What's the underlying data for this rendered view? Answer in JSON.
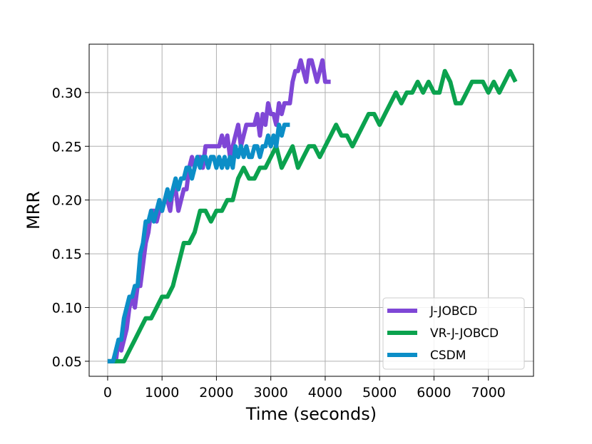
{
  "chart_data": {
    "type": "line",
    "xlabel": "Time (seconds)",
    "ylabel": "MRR",
    "xlim": [
      -340,
      7830
    ],
    "ylim": [
      0.036,
      0.345
    ],
    "xticks": [
      0,
      1000,
      2000,
      3000,
      4000,
      5000,
      6000,
      7000
    ],
    "xtick_labels": [
      "0",
      "1000",
      "2000",
      "3000",
      "4000",
      "5000",
      "6000",
      "7000"
    ],
    "yticks": [
      0.05,
      0.1,
      0.15,
      0.2,
      0.25,
      0.3
    ],
    "ytick_labels": [
      "0.05",
      "0.10",
      "0.15",
      "0.20",
      "0.25",
      "0.30"
    ],
    "grid": true,
    "legend_position": "lower-right",
    "series": [
      {
        "name": "J-JOBCD",
        "color": "#7f47d6",
        "x": [
          0,
          150,
          200,
          250,
          350,
          400,
          450,
          500,
          550,
          600,
          650,
          700,
          750,
          800,
          850,
          900,
          950,
          1000,
          1050,
          1100,
          1150,
          1200,
          1250,
          1300,
          1350,
          1400,
          1450,
          1500,
          1550,
          1600,
          1650,
          1700,
          1750,
          1800,
          1850,
          1900,
          1950,
          2000,
          2050,
          2100,
          2150,
          2200,
          2250,
          2300,
          2350,
          2400,
          2450,
          2500,
          2550,
          2600,
          2650,
          2700,
          2750,
          2800,
          2850,
          2900,
          2950,
          3000,
          3050,
          3100,
          3150,
          3200,
          3250,
          3300,
          3350,
          3400,
          3450,
          3500,
          3550,
          3600,
          3650,
          3700,
          3750,
          3800,
          3850,
          3900,
          3950,
          4000,
          4050,
          4100
        ],
        "y": [
          0.05,
          0.05,
          0.07,
          0.06,
          0.08,
          0.1,
          0.11,
          0.1,
          0.12,
          0.12,
          0.14,
          0.16,
          0.17,
          0.19,
          0.19,
          0.18,
          0.19,
          0.19,
          0.2,
          0.2,
          0.19,
          0.21,
          0.21,
          0.19,
          0.2,
          0.21,
          0.21,
          0.23,
          0.24,
          0.23,
          0.24,
          0.24,
          0.23,
          0.25,
          0.25,
          0.25,
          0.25,
          0.25,
          0.25,
          0.26,
          0.25,
          0.26,
          0.24,
          0.25,
          0.26,
          0.27,
          0.25,
          0.26,
          0.27,
          0.27,
          0.27,
          0.27,
          0.28,
          0.26,
          0.28,
          0.27,
          0.29,
          0.28,
          0.28,
          0.27,
          0.29,
          0.28,
          0.29,
          0.29,
          0.29,
          0.31,
          0.32,
          0.32,
          0.33,
          0.32,
          0.31,
          0.33,
          0.33,
          0.32,
          0.31,
          0.32,
          0.33,
          0.31,
          0.31,
          0.31
        ]
      },
      {
        "name": "VR-J-JOBCD",
        "color": "#0ba24e",
        "x": [
          0,
          100,
          300,
          400,
          500,
          600,
          700,
          800,
          900,
          1000,
          1100,
          1200,
          1250,
          1300,
          1400,
          1500,
          1600,
          1700,
          1800,
          1900,
          2000,
          2100,
          2200,
          2300,
          2400,
          2500,
          2600,
          2700,
          2800,
          2900,
          3000,
          3100,
          3200,
          3300,
          3400,
          3500,
          3600,
          3700,
          3800,
          3900,
          4000,
          4100,
          4200,
          4300,
          4400,
          4500,
          4600,
          4700,
          4800,
          4900,
          5000,
          5100,
          5200,
          5300,
          5400,
          5500,
          5600,
          5700,
          5800,
          5900,
          6000,
          6100,
          6200,
          6300,
          6400,
          6500,
          6600,
          6700,
          6800,
          6900,
          7000,
          7100,
          7200,
          7300,
          7400,
          7500
        ],
        "y": [
          0.05,
          0.05,
          0.05,
          0.06,
          0.07,
          0.08,
          0.09,
          0.09,
          0.1,
          0.11,
          0.11,
          0.12,
          0.13,
          0.14,
          0.16,
          0.16,
          0.17,
          0.19,
          0.19,
          0.18,
          0.19,
          0.19,
          0.2,
          0.2,
          0.22,
          0.23,
          0.22,
          0.22,
          0.23,
          0.23,
          0.24,
          0.25,
          0.23,
          0.24,
          0.25,
          0.23,
          0.24,
          0.25,
          0.25,
          0.24,
          0.25,
          0.26,
          0.27,
          0.26,
          0.26,
          0.25,
          0.26,
          0.27,
          0.28,
          0.28,
          0.27,
          0.28,
          0.29,
          0.3,
          0.29,
          0.3,
          0.3,
          0.31,
          0.3,
          0.31,
          0.3,
          0.3,
          0.32,
          0.31,
          0.29,
          0.29,
          0.3,
          0.31,
          0.31,
          0.31,
          0.3,
          0.31,
          0.3,
          0.31,
          0.32,
          0.31
        ]
      },
      {
        "name": "CSDM",
        "color": "#0c8ec7",
        "x": [
          0,
          100,
          150,
          200,
          250,
          300,
          350,
          400,
          450,
          500,
          550,
          600,
          650,
          700,
          750,
          800,
          850,
          900,
          950,
          1000,
          1050,
          1100,
          1150,
          1200,
          1250,
          1300,
          1350,
          1400,
          1450,
          1500,
          1550,
          1600,
          1650,
          1700,
          1750,
          1800,
          1850,
          1900,
          1950,
          2000,
          2050,
          2100,
          2150,
          2200,
          2250,
          2300,
          2350,
          2400,
          2450,
          2500,
          2550,
          2600,
          2650,
          2700,
          2750,
          2800,
          2850,
          2900,
          2950,
          3000,
          3050,
          3100,
          3150,
          3200,
          3250,
          3300,
          3350
        ],
        "y": [
          0.05,
          0.05,
          0.06,
          0.07,
          0.07,
          0.09,
          0.1,
          0.11,
          0.11,
          0.12,
          0.12,
          0.15,
          0.16,
          0.18,
          0.18,
          0.19,
          0.18,
          0.19,
          0.2,
          0.19,
          0.2,
          0.21,
          0.2,
          0.21,
          0.22,
          0.21,
          0.22,
          0.22,
          0.23,
          0.23,
          0.22,
          0.23,
          0.24,
          0.23,
          0.24,
          0.24,
          0.23,
          0.24,
          0.24,
          0.23,
          0.24,
          0.23,
          0.24,
          0.23,
          0.24,
          0.23,
          0.25,
          0.24,
          0.25,
          0.24,
          0.25,
          0.24,
          0.24,
          0.25,
          0.25,
          0.24,
          0.25,
          0.25,
          0.26,
          0.25,
          0.26,
          0.25,
          0.27,
          0.26,
          0.27,
          0.27,
          0.27
        ]
      }
    ]
  }
}
